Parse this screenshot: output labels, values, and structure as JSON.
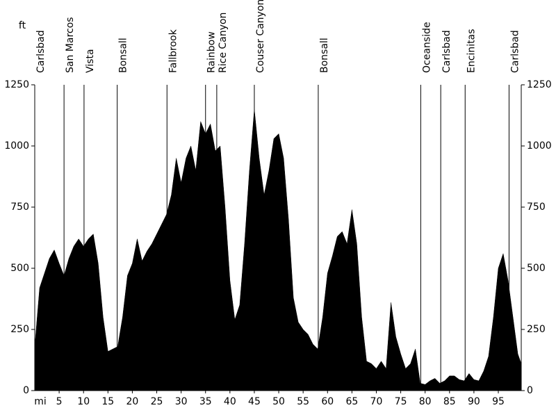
{
  "chart_data": {
    "type": "area",
    "y_label": "ft",
    "x_label": "mi",
    "color": "#000000",
    "xlim": [
      0,
      99.7
    ],
    "ylim": [
      0,
      1250
    ],
    "xticks": [
      5,
      10,
      15,
      20,
      25,
      30,
      35,
      40,
      45,
      50,
      55,
      60,
      65,
      70,
      75,
      80,
      85,
      90,
      95
    ],
    "yticks": [
      0,
      250,
      500,
      750,
      1000,
      1250
    ],
    "landmarks": [
      {
        "name": "Carlsbad",
        "mile": 0
      },
      {
        "name": "San Marcos",
        "mile": 6
      },
      {
        "name": "Vista",
        "mile": 10.1
      },
      {
        "name": "Bonsall",
        "mile": 16.9
      },
      {
        "name": "Fallbrook",
        "mile": 27.1
      },
      {
        "name": "Rainbow",
        "mile": 35
      },
      {
        "name": "Rice Canyon",
        "mile": 37.3
      },
      {
        "name": "Couser Canyon",
        "mile": 45
      },
      {
        "name": "Bonsall",
        "mile": 58.1
      },
      {
        "name": "Oceanside",
        "mile": 79.1
      },
      {
        "name": "Carlsbad",
        "mile": 83.2
      },
      {
        "name": "Encinitas",
        "mile": 88.2
      },
      {
        "name": "Carlsbad",
        "mile": 97.2
      }
    ],
    "x": [
      0,
      1,
      2,
      3,
      4,
      5,
      6,
      7,
      8,
      9,
      10,
      11,
      12,
      13,
      14,
      15,
      16,
      17,
      18,
      19,
      20,
      21,
      22,
      23,
      24,
      25,
      26,
      27,
      28,
      29,
      30,
      31,
      32,
      33,
      34,
      35,
      36,
      37,
      38,
      39,
      40,
      41,
      42,
      43,
      44,
      45,
      46,
      47,
      48,
      49,
      50,
      51,
      52,
      53,
      54,
      55,
      56,
      57,
      58,
      59,
      60,
      61,
      62,
      63,
      64,
      65,
      66,
      67,
      68,
      69,
      70,
      71,
      72,
      73,
      74,
      75,
      76,
      77,
      78,
      79,
      80,
      81,
      82,
      83,
      84,
      85,
      86,
      87,
      88,
      89,
      90,
      91,
      92,
      93,
      94,
      95,
      96,
      97,
      98,
      99,
      99.7
    ],
    "values": [
      180,
      420,
      480,
      540,
      575,
      520,
      470,
      540,
      590,
      620,
      590,
      620,
      640,
      520,
      300,
      160,
      170,
      180,
      300,
      470,
      520,
      620,
      530,
      570,
      600,
      640,
      680,
      720,
      800,
      950,
      850,
      950,
      1000,
      900,
      1100,
      1050,
      1090,
      980,
      1000,
      750,
      450,
      290,
      350,
      600,
      900,
      1150,
      950,
      800,
      900,
      1030,
      1050,
      950,
      700,
      380,
      280,
      250,
      230,
      190,
      170,
      300,
      480,
      550,
      630,
      650,
      600,
      740,
      600,
      300,
      120,
      110,
      90,
      120,
      90,
      360,
      220,
      150,
      90,
      110,
      170,
      30,
      25,
      40,
      50,
      30,
      40,
      60,
      60,
      45,
      40,
      70,
      45,
      40,
      80,
      140,
      300,
      500,
      560,
      450,
      300,
      150,
      110
    ]
  }
}
